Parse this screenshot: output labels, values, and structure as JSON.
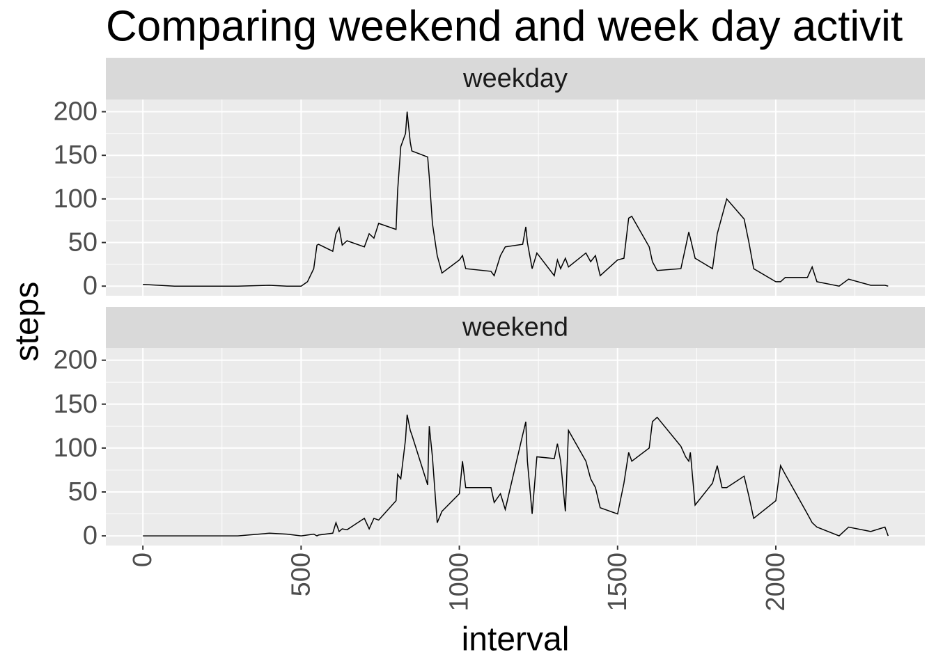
{
  "chart_data": {
    "type": "line",
    "title": "Comparing weekend and week day activit",
    "x_label": "interval",
    "y_label": "steps",
    "facet": true,
    "x": [
      0,
      100,
      200,
      300,
      400,
      455,
      500,
      520,
      540,
      550,
      555,
      600,
      610,
      620,
      630,
      645,
      700,
      715,
      730,
      745,
      800,
      805,
      815,
      830,
      835,
      845,
      850,
      900,
      905,
      915,
      930,
      945,
      1000,
      1010,
      1020,
      1100,
      1110,
      1130,
      1145,
      1200,
      1210,
      1215,
      1230,
      1245,
      1300,
      1310,
      1320,
      1335,
      1345,
      1400,
      1415,
      1430,
      1445,
      1500,
      1520,
      1535,
      1545,
      1600,
      1610,
      1625,
      1700,
      1715,
      1725,
      1730,
      1745,
      1800,
      1815,
      1830,
      1845,
      1900,
      1915,
      1930,
      2000,
      2015,
      2030,
      2100,
      2115,
      2130,
      2200,
      2230,
      2300,
      2345,
      2355
    ],
    "series": [
      {
        "name": "weekday",
        "color": "#000000",
        "values": [
          2,
          0,
          0,
          0,
          1,
          0,
          0,
          5,
          20,
          47,
          48,
          40,
          60,
          67,
          47,
          52,
          45,
          60,
          55,
          72,
          65,
          110,
          160,
          175,
          200,
          165,
          155,
          148,
          125,
          72,
          35,
          15,
          30,
          35,
          20,
          17,
          12,
          35,
          45,
          48,
          68,
          50,
          20,
          38,
          12,
          30,
          20,
          32,
          22,
          38,
          28,
          35,
          12,
          30,
          32,
          78,
          80,
          45,
          28,
          18,
          20,
          45,
          62,
          55,
          32,
          20,
          60,
          80,
          100,
          77,
          50,
          20,
          5,
          5,
          10,
          10,
          22,
          5,
          0,
          8,
          1,
          1,
          0
        ]
      },
      {
        "name": "weekend",
        "color": "#000000",
        "values": [
          0,
          0,
          0,
          0,
          3,
          2,
          0,
          1,
          2,
          0,
          1,
          3,
          15,
          5,
          8,
          7,
          20,
          8,
          20,
          18,
          40,
          70,
          65,
          110,
          138,
          120,
          115,
          58,
          125,
          90,
          15,
          28,
          48,
          85,
          55,
          55,
          38,
          48,
          30,
          115,
          130,
          85,
          25,
          90,
          88,
          105,
          85,
          28,
          120,
          85,
          65,
          55,
          32,
          25,
          60,
          95,
          85,
          100,
          130,
          135,
          102,
          90,
          85,
          95,
          35,
          60,
          80,
          55,
          55,
          68,
          45,
          20,
          40,
          80,
          70,
          25,
          15,
          10,
          0,
          10,
          5,
          10,
          0
        ]
      }
    ],
    "xlim": [
      -117,
      2471
    ],
    "xticks": [
      0,
      500,
      1000,
      1500,
      2000
    ],
    "ylim": [
      -11,
      214
    ],
    "yticks": [
      0,
      50,
      100,
      150,
      200
    ],
    "grid": true
  }
}
